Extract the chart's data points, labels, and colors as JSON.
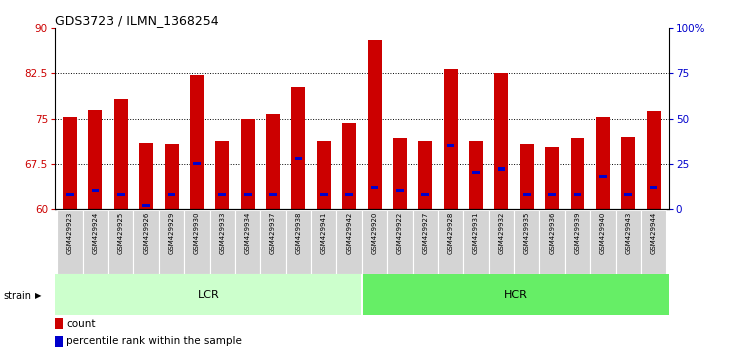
{
  "title": "GDS3723 / ILMN_1368254",
  "samples": [
    "GSM429923",
    "GSM429924",
    "GSM429925",
    "GSM429926",
    "GSM429929",
    "GSM429930",
    "GSM429933",
    "GSM429934",
    "GSM429937",
    "GSM429938",
    "GSM429941",
    "GSM429942",
    "GSM429920",
    "GSM429922",
    "GSM429927",
    "GSM429928",
    "GSM429931",
    "GSM429932",
    "GSM429935",
    "GSM429936",
    "GSM429939",
    "GSM429940",
    "GSM429943",
    "GSM429944"
  ],
  "count_values": [
    75.2,
    76.5,
    78.2,
    71.0,
    70.8,
    82.2,
    71.2,
    75.0,
    75.8,
    80.2,
    71.2,
    74.2,
    88.0,
    71.8,
    71.2,
    83.2,
    71.2,
    82.5,
    70.8,
    70.2,
    71.8,
    75.2,
    72.0,
    76.2
  ],
  "percentile_pct": [
    8,
    10,
    8,
    2,
    8,
    25,
    8,
    8,
    8,
    28,
    8,
    8,
    12,
    10,
    8,
    35,
    20,
    22,
    8,
    8,
    8,
    18,
    8,
    12
  ],
  "lcr_count": 12,
  "hcr_count": 12,
  "bar_color": "#cc0000",
  "percentile_color": "#0000cc",
  "y_min": 60,
  "y_max": 90,
  "yticks_left": [
    60,
    67.5,
    75,
    82.5,
    90
  ],
  "ytick_labels_left": [
    "60",
    "67.5",
    "75",
    "82.5",
    "90"
  ],
  "ytick_labels_right": [
    "0",
    "25",
    "50",
    "75",
    "100%"
  ],
  "hlines": [
    67.5,
    75,
    82.5
  ],
  "lcr_color": "#ccffcc",
  "hcr_color": "#66ee66",
  "label_count": "count",
  "label_percentile": "percentile rank within the sample",
  "tick_color_left": "#cc0000",
  "tick_color_right": "#0000cc"
}
